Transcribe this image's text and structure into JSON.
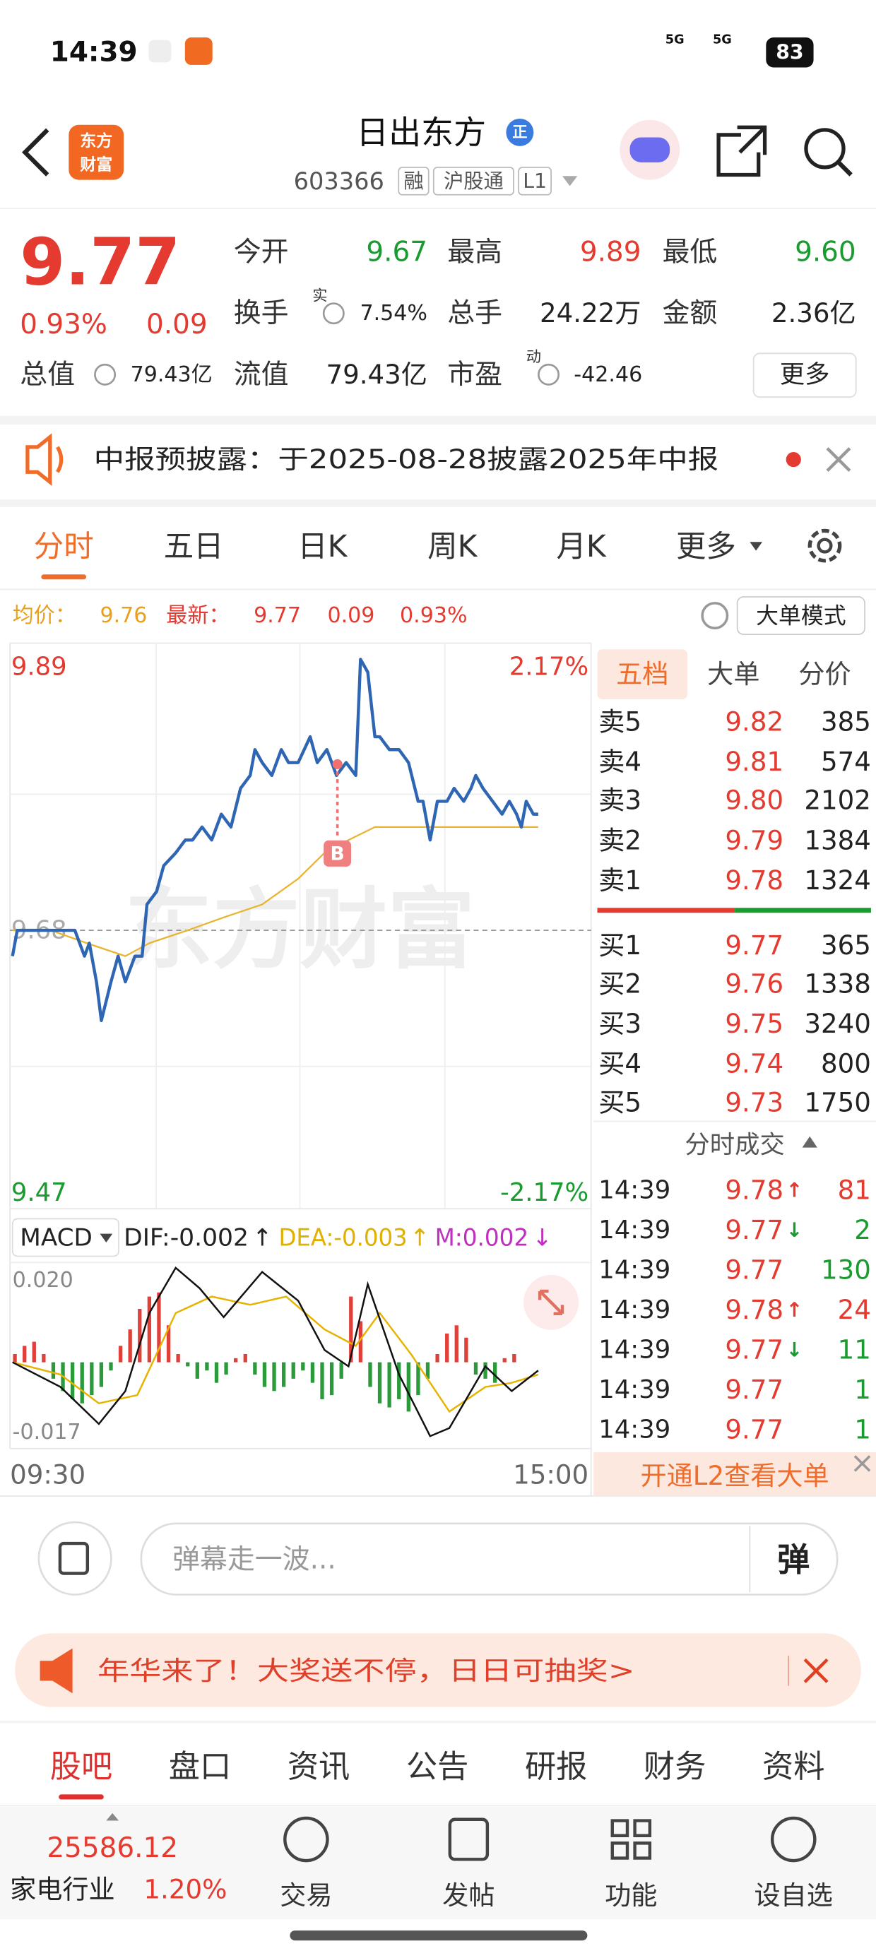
{
  "status_bar": {
    "time": "14:39",
    "signal_1": "5G",
    "signal_2": "5G",
    "battery": "83"
  },
  "header": {
    "logo": [
      "东方",
      "财富"
    ],
    "title": "日出东方",
    "badge": "正",
    "code": "603366",
    "tags": [
      "融",
      "沪股通",
      "L1"
    ]
  },
  "quote": {
    "price": "9.77",
    "change_pct": "0.93%",
    "change": "0.09",
    "fields": [
      {
        "label": "今开",
        "value": "9.67",
        "color": "#1a9b30"
      },
      {
        "label": "最高",
        "value": "9.89",
        "color": "#e53a30"
      },
      {
        "label": "最低",
        "value": "9.60",
        "color": "#1a9b30"
      },
      {
        "label": "换手",
        "sup": "实",
        "value": "7.54%",
        "color": "#222222"
      },
      {
        "label": "总手",
        "value": "24.22万",
        "color": "#222222"
      },
      {
        "label": "金额",
        "value": "2.36亿",
        "color": "#222222"
      },
      {
        "label": "总值",
        "value": "79.43亿",
        "color": "#222222"
      },
      {
        "label": "流值",
        "value": "79.43亿",
        "color": "#222222"
      },
      {
        "label": "市盈",
        "sup": "动",
        "value": "-42.46",
        "color": "#222222"
      }
    ],
    "more_button": "更多"
  },
  "notice": {
    "text": "中报预披露：于2025-08-28披露2025年中报"
  },
  "tabs": {
    "items": [
      "分时",
      "五日",
      "日K",
      "周K",
      "月K",
      "更多"
    ],
    "active": 0
  },
  "info_bar": {
    "avg_label": "均价：",
    "avg": "9.76",
    "last_label": "最新：",
    "last": "9.77",
    "change": "0.09",
    "change_pct": "0.93%",
    "button": "大单模式"
  },
  "intraday_chart": {
    "type": "line",
    "watermark": "东方财富",
    "buy_marker": "B",
    "xlim": [
      0,
      240
    ],
    "ylim": [
      9.47,
      9.89
    ],
    "yticks": [
      9.89,
      9.68,
      9.47
    ],
    "y2lim": [
      -2.17,
      2.17
    ],
    "y2ticks": [
      {
        "value": 2.17,
        "label": "2.17%"
      },
      {
        "value": -2.17,
        "label": "-2.17%"
      }
    ],
    "xticks": [
      {
        "value": 0,
        "label": "09:30"
      },
      {
        "value": 240,
        "label": "15:00"
      }
    ],
    "price_line": {
      "color": "#2f66b3",
      "x": [
        0,
        2,
        5,
        10,
        16,
        21,
        26,
        30,
        32,
        35,
        37,
        41,
        44,
        47,
        51,
        54,
        56,
        60,
        63,
        68,
        72,
        75,
        79,
        83,
        87,
        91,
        95,
        99,
        101,
        104,
        108,
        112,
        115,
        119,
        124,
        127,
        131,
        135,
        139,
        143,
        145,
        148,
        151,
        153,
        157,
        161,
        165,
        169,
        171,
        174,
        177,
        181,
        184,
        188,
        191,
        193,
        196,
        200,
        204,
        207,
        210,
        212,
        214,
        217,
        219
      ],
      "values": [
        9.66,
        9.68,
        9.68,
        9.68,
        9.68,
        9.68,
        9.68,
        9.66,
        9.67,
        9.64,
        9.61,
        9.64,
        9.66,
        9.64,
        9.66,
        9.66,
        9.7,
        9.71,
        9.73,
        9.74,
        9.75,
        9.75,
        9.76,
        9.75,
        9.77,
        9.76,
        9.79,
        9.8,
        9.82,
        9.81,
        9.8,
        9.82,
        9.81,
        9.81,
        9.83,
        9.81,
        9.82,
        9.8,
        9.81,
        9.8,
        9.89,
        9.88,
        9.83,
        9.83,
        9.82,
        9.82,
        9.81,
        9.78,
        9.78,
        9.75,
        9.78,
        9.78,
        9.79,
        9.78,
        9.79,
        9.8,
        9.79,
        9.78,
        9.77,
        9.78,
        9.77,
        9.76,
        9.78,
        9.77,
        9.77
      ]
    },
    "avg_line": {
      "color": "#e8b530",
      "x": [
        0,
        16,
        31,
        47,
        57,
        73,
        88,
        104,
        119,
        130,
        140,
        151,
        166,
        182,
        203,
        219
      ],
      "values": [
        9.68,
        9.68,
        9.67,
        9.66,
        9.67,
        9.68,
        9.69,
        9.7,
        9.72,
        9.74,
        9.75,
        9.76,
        9.76,
        9.76,
        9.76,
        9.76
      ]
    }
  },
  "macd_chart": {
    "type": "bar",
    "label": "MACD",
    "dif_label": "DIF:-0.002",
    "dif_arrow": "↑",
    "dea_label": "DEA:-0.003",
    "dea_arrow": "↑",
    "m_label": "M:0.002",
    "m_arrow": "↓",
    "xlim": [
      0,
      240
    ],
    "ylim": [
      -0.021,
      0.024
    ],
    "yticks": [
      {
        "value": 0.02,
        "label": "0.020"
      },
      -0.017
    ],
    "histogram": {
      "up_color": "#e0403a",
      "down_color": "#2a9a3a",
      "x": [
        1,
        5,
        9,
        13,
        17,
        21,
        25,
        29,
        33,
        37,
        41,
        45,
        49,
        53,
        57,
        61,
        65,
        69,
        73,
        77,
        81,
        85,
        89,
        93,
        97,
        101,
        105,
        109,
        113,
        117,
        121,
        125,
        129,
        133,
        137,
        141,
        145,
        149,
        153,
        157,
        161,
        165,
        169,
        173,
        177,
        181,
        185,
        189,
        193,
        197,
        201,
        205,
        209
      ],
      "values": [
        0.002,
        0.004,
        0.005,
        0.002,
        -0.004,
        -0.007,
        -0.009,
        -0.01,
        -0.008,
        -0.006,
        -0.002,
        0.004,
        0.008,
        0.013,
        0.016,
        0.017,
        0.009,
        0.002,
        -0.001,
        -0.004,
        -0.002,
        -0.005,
        -0.003,
        0.001,
        0.002,
        -0.003,
        -0.006,
        -0.007,
        -0.006,
        -0.004,
        -0.002,
        -0.005,
        -0.009,
        -0.008,
        -0.004,
        0.016,
        0.01,
        -0.006,
        -0.01,
        -0.011,
        -0.009,
        -0.012,
        -0.008,
        -0.004,
        0.002,
        0.007,
        0.009,
        0.006,
        -0.003,
        -0.004,
        -0.005,
        0.001,
        0.002
      ]
    },
    "dif": {
      "color": "#111111",
      "x": [
        0,
        20,
        36,
        47,
        57,
        68,
        78,
        88,
        104,
        119,
        130,
        140,
        148,
        161,
        174,
        182,
        197,
        208,
        219
      ],
      "values": [
        0,
        -0.006,
        -0.015,
        -0.007,
        0.012,
        0.023,
        0.018,
        0.011,
        0.022,
        0.015,
        0.003,
        -0.001,
        0.019,
        -0.003,
        -0.018,
        -0.016,
        -0.001,
        -0.007,
        -0.002
      ]
    },
    "dea": {
      "color": "#e6b400",
      "x": [
        0,
        20,
        36,
        52,
        68,
        83,
        99,
        114,
        130,
        143,
        153,
        166,
        182,
        197,
        208,
        219
      ],
      "values": [
        0,
        -0.003,
        -0.01,
        -0.008,
        0.012,
        0.016,
        0.014,
        0.016,
        0.008,
        0.004,
        0.012,
        0.002,
        -0.012,
        -0.006,
        -0.005,
        -0.003
      ]
    }
  },
  "order_book": {
    "tabs": [
      "五档",
      "大单",
      "分价"
    ],
    "active": 0,
    "asks": [
      {
        "label": "卖5",
        "price": "9.82",
        "volume": "385"
      },
      {
        "label": "卖4",
        "price": "9.81",
        "volume": "574"
      },
      {
        "label": "卖3",
        "price": "9.80",
        "volume": "2102"
      },
      {
        "label": "卖2",
        "price": "9.79",
        "volume": "1384"
      },
      {
        "label": "卖1",
        "price": "9.78",
        "volume": "1324"
      }
    ],
    "bids": [
      {
        "label": "买1",
        "price": "9.77",
        "volume": "365"
      },
      {
        "label": "买2",
        "price": "9.76",
        "volume": "1338"
      },
      {
        "label": "买3",
        "price": "9.75",
        "volume": "3240"
      },
      {
        "label": "买4",
        "price": "9.74",
        "volume": "800"
      },
      {
        "label": "买5",
        "price": "9.73",
        "volume": "1750"
      }
    ],
    "trades_title": "分时成交"
  },
  "trades": [
    {
      "time": "14:39",
      "price": "9.78",
      "arrow": "↑",
      "volume": "81",
      "color": "#e53a30"
    },
    {
      "time": "14:39",
      "price": "9.77",
      "arrow": "↓",
      "volume": "2",
      "color": "#1a9b30"
    },
    {
      "time": "14:39",
      "price": "9.77",
      "volume": "130",
      "color": "#1a9b30"
    },
    {
      "time": "14:39",
      "price": "9.78",
      "arrow": "↑",
      "volume": "24",
      "color": "#e53a30"
    },
    {
      "time": "14:39",
      "price": "9.77",
      "arrow": "↓",
      "volume": "11",
      "color": "#1a9b30"
    },
    {
      "time": "14:39",
      "price": "9.77",
      "volume": "1",
      "color": "#1a9b30"
    },
    {
      "time": "14:39",
      "price": "9.77",
      "volume": "1",
      "color": "#1a9b30"
    }
  ],
  "l2_bar": {
    "text": "开通L2查看大单"
  },
  "comment_box": {
    "placeholder": "弹幕走一波...",
    "button": "弹"
  },
  "banner": {
    "text": "年华来了！大奖送不停，日日可抽奖>"
  },
  "bottom_tabs": {
    "items": [
      "股吧",
      "盘口",
      "资讯",
      "公告",
      "研报",
      "财务",
      "资料"
    ],
    "active": 0
  },
  "bottom_nav": {
    "index_value": "25586.12",
    "sector": "家电行业",
    "sector_change": "1.20%",
    "items": [
      "交易",
      "发帖",
      "功能",
      "设自选"
    ]
  }
}
